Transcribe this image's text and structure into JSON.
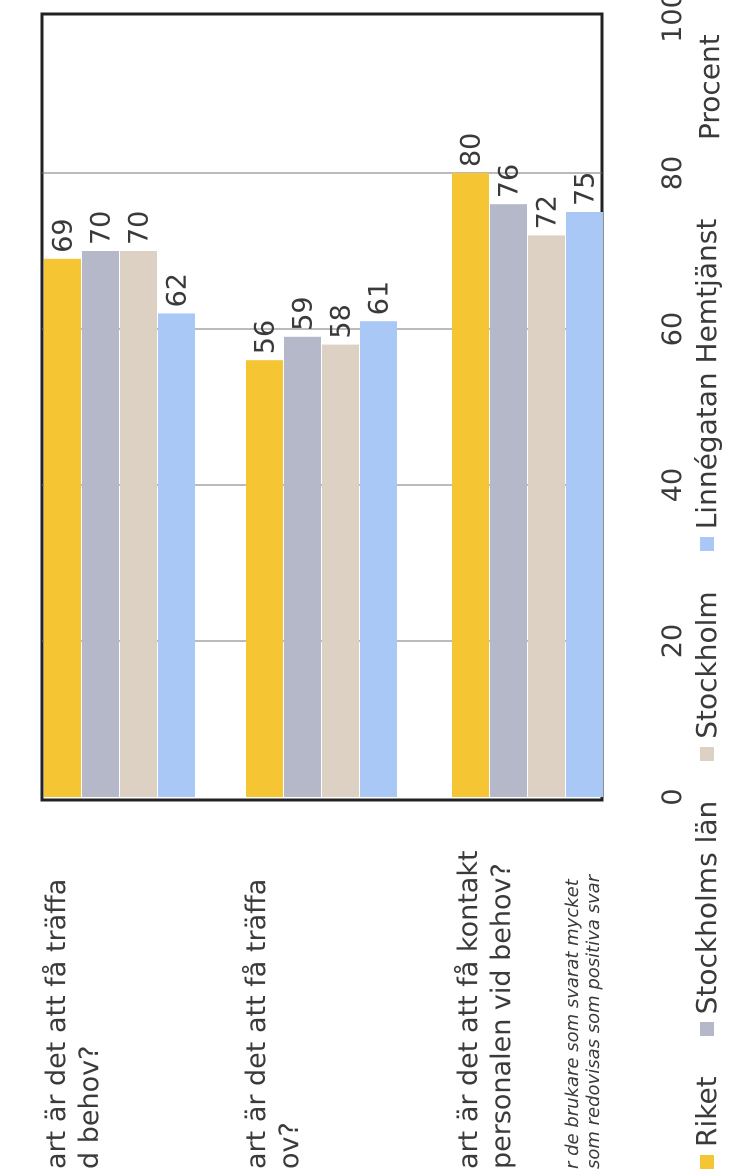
{
  "chart_data": {
    "type": "bar",
    "orientation": "horizontal",
    "categories": [
      "...art är det att få träffa ...d behov?",
      "...art är det att få träffa ...ov?",
      "...art är det att få kontakt ...personalen vid behov?"
    ],
    "category_lines": [
      [
        "art är det att få träffa",
        "d behov?"
      ],
      [
        "art är det att få träffa",
        "ov?"
      ],
      [
        "art är det att få kontakt",
        "personalen vid behov?"
      ]
    ],
    "series": [
      {
        "name": "Riket",
        "color": "#f5c533",
        "values": [
          69,
          56,
          80
        ]
      },
      {
        "name": "Stockholms län",
        "color": "#b4b8c8",
        "values": [
          70,
          59,
          76
        ]
      },
      {
        "name": "Stockholm",
        "color": "#ddd1c3",
        "values": [
          70,
          58,
          72
        ]
      },
      {
        "name": "Linnégatan Hemtjänst",
        "color": "#a9c8f5",
        "values": [
          62,
          61,
          75
        ]
      }
    ],
    "xlim": [
      0,
      100
    ],
    "xticks": [
      "0",
      "20",
      "40",
      "60",
      "80",
      "100"
    ],
    "xlabel": "Procent",
    "grid": true,
    "legend_position": "bottom",
    "footnote": [
      "r de brukare som svarat mycket",
      "som redovisas som positiva svar"
    ]
  }
}
